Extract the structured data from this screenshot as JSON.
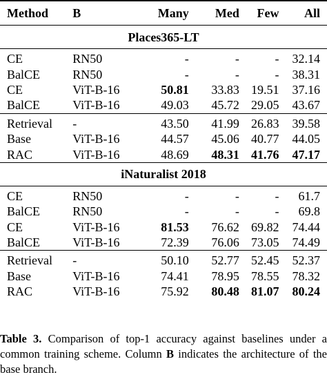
{
  "columns": {
    "method": "Method",
    "b": "B",
    "many": "Many",
    "med": "Med",
    "few": "Few",
    "all": "All"
  },
  "sections": [
    {
      "title": "Places365-LT",
      "groups": [
        [
          {
            "method": "CE",
            "b": "RN50",
            "many": "-",
            "med": "-",
            "few": "-",
            "all": "32.14",
            "bold": []
          },
          {
            "method": "BalCE",
            "b": "RN50",
            "many": "-",
            "med": "-",
            "few": "-",
            "all": "38.31",
            "bold": []
          },
          {
            "method": "CE",
            "b": "ViT-B-16",
            "many": "50.81",
            "med": "33.83",
            "few": "19.51",
            "all": "37.16",
            "bold": [
              "many"
            ]
          },
          {
            "method": "BalCE",
            "b": "ViT-B-16",
            "many": "49.03",
            "med": "45.72",
            "few": "29.05",
            "all": "43.67",
            "bold": []
          }
        ],
        [
          {
            "method": "Retrieval",
            "b": "-",
            "many": "43.50",
            "med": "41.99",
            "few": "26.83",
            "all": "39.58",
            "bold": []
          },
          {
            "method": "Base",
            "b": "ViT-B-16",
            "many": "44.57",
            "med": "45.06",
            "few": "40.77",
            "all": "44.05",
            "bold": []
          },
          {
            "method": "RAC",
            "b": "ViT-B-16",
            "many": "48.69",
            "med": "48.31",
            "few": "41.76",
            "all": "47.17",
            "bold": [
              "med",
              "few",
              "all"
            ]
          }
        ]
      ]
    },
    {
      "title": "iNaturalist 2018",
      "groups": [
        [
          {
            "method": "CE",
            "b": "RN50",
            "many": "-",
            "med": "-",
            "few": "-",
            "all": "61.7",
            "bold": []
          },
          {
            "method": "BalCE",
            "b": "RN50",
            "many": "-",
            "med": "-",
            "few": "-",
            "all": "69.8",
            "bold": []
          },
          {
            "method": "CE",
            "b": "ViT-B-16",
            "many": "81.53",
            "med": "76.62",
            "few": "69.82",
            "all": "74.44",
            "bold": [
              "many"
            ]
          },
          {
            "method": "BalCE",
            "b": "ViT-B-16",
            "many": "72.39",
            "med": "76.06",
            "few": "73.05",
            "all": "74.49",
            "bold": []
          }
        ],
        [
          {
            "method": "Retrieval",
            "b": "-",
            "many": "50.10",
            "med": "52.77",
            "few": "52.45",
            "all": "52.37",
            "bold": []
          },
          {
            "method": "Base",
            "b": "ViT-B-16",
            "many": "74.41",
            "med": "78.95",
            "few": "78.55",
            "all": "78.32",
            "bold": []
          },
          {
            "method": "RAC",
            "b": "ViT-B-16",
            "many": "75.92",
            "med": "80.48",
            "few": "81.07",
            "all": "80.24",
            "bold": [
              "med",
              "few",
              "all"
            ]
          }
        ]
      ]
    }
  ],
  "caption": {
    "label": "Table 3.",
    "text_before": " Comparison of top-1 accuracy against baselines under a common training scheme. Column ",
    "symbol": "B",
    "text_after": " indicates the architecture of the base branch."
  }
}
